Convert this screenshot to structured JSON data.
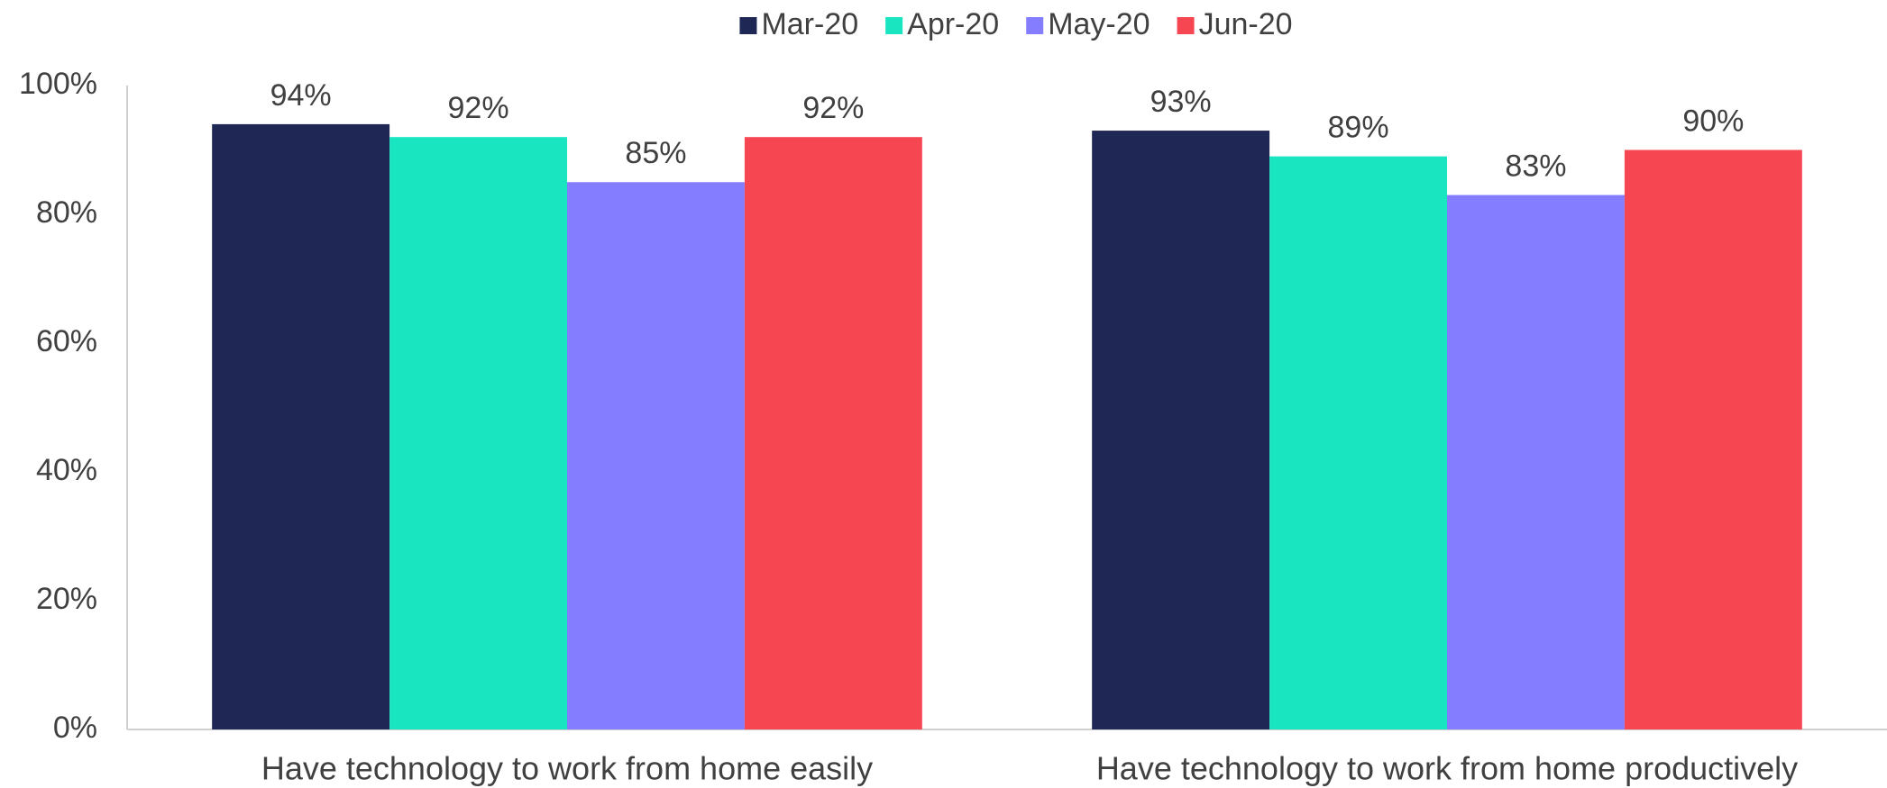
{
  "chart_data": {
    "type": "bar",
    "categories": [
      "Have technology to work from home easily",
      "Have technology to work from home productively"
    ],
    "series": [
      {
        "name": "Mar-20",
        "color": "#1f2754",
        "values": [
          94,
          93
        ],
        "value_labels": [
          "94%",
          "93%"
        ]
      },
      {
        "name": "Apr-20",
        "color": "#19e6c1",
        "values": [
          92,
          89
        ],
        "value_labels": [
          "92%",
          "89%"
        ]
      },
      {
        "name": "May-20",
        "color": "#857dff",
        "values": [
          85,
          83
        ],
        "value_labels": [
          "85%",
          "83%"
        ]
      },
      {
        "name": "Jun-20",
        "color": "#f64652",
        "values": [
          92,
          90
        ],
        "value_labels": [
          "92%",
          "90%"
        ]
      }
    ],
    "ylim": [
      0,
      100
    ],
    "yticks": [
      {
        "value": 0,
        "label": "0%"
      },
      {
        "value": 20,
        "label": "20%"
      },
      {
        "value": 40,
        "label": "40%"
      },
      {
        "value": 60,
        "label": "60%"
      },
      {
        "value": 80,
        "label": "80%"
      },
      {
        "value": 100,
        "label": "100%"
      }
    ],
    "grid": false,
    "legend": "top"
  }
}
